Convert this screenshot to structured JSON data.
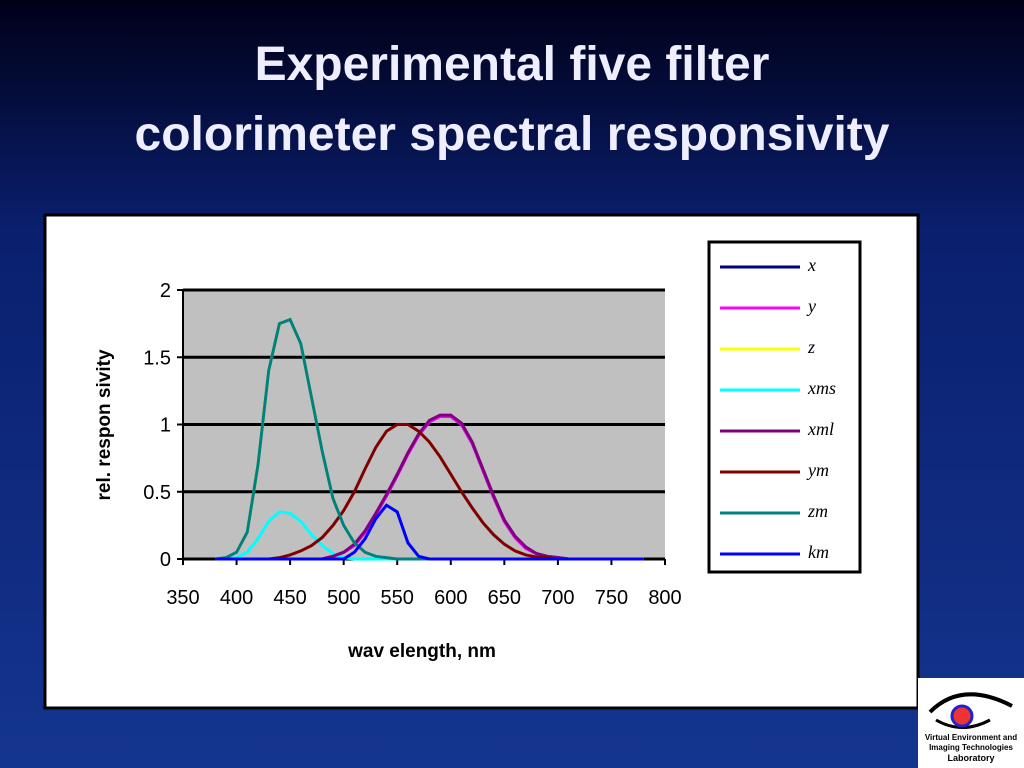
{
  "slide": {
    "title": [
      "Experimental five filter",
      "colorimeter spectral responsivity"
    ],
    "logo": [
      "Virtual Environment and",
      "Imaging Technologies",
      "Laboratory"
    ]
  },
  "chart_data": {
    "type": "line",
    "x_label": "wav elength, nm",
    "y_label": "rel. respon sivity",
    "x": [
      380,
      390,
      400,
      410,
      420,
      430,
      440,
      450,
      460,
      470,
      480,
      490,
      500,
      510,
      520,
      530,
      540,
      550,
      560,
      570,
      580,
      590,
      600,
      610,
      620,
      630,
      640,
      650,
      660,
      670,
      680,
      690,
      700,
      710,
      720,
      730,
      740,
      750,
      760,
      770,
      780
    ],
    "xlim": [
      350,
      800
    ],
    "xticks": [
      350,
      400,
      450,
      500,
      550,
      600,
      650,
      700,
      750,
      800
    ],
    "ylim": [
      0,
      2
    ],
    "yticks": [
      0,
      0.5,
      1,
      1.5,
      2
    ],
    "grid": true,
    "legend": "right",
    "series": [
      {
        "name": "x",
        "color": "#000080",
        "values": [
          0,
          0,
          0,
          0,
          0,
          0,
          0,
          0,
          0,
          0,
          0,
          0.02,
          0.05,
          0.1,
          0.2,
          0.33,
          0.47,
          0.62,
          0.78,
          0.92,
          1.02,
          1.06,
          1.06,
          1.0,
          0.86,
          0.66,
          0.46,
          0.28,
          0.16,
          0.08,
          0.04,
          0.02,
          0.01,
          0,
          0,
          0,
          0,
          0,
          0,
          0,
          0
        ]
      },
      {
        "name": "y",
        "color": "#ff00ff",
        "values": [
          0,
          0,
          0,
          0,
          0,
          0,
          0,
          0,
          0,
          0,
          0,
          0.02,
          0.05,
          0.1,
          0.2,
          0.33,
          0.47,
          0.62,
          0.78,
          0.92,
          1.02,
          1.06,
          1.06,
          1.0,
          0.86,
          0.66,
          0.46,
          0.28,
          0.16,
          0.08,
          0.04,
          0.02,
          0.01,
          0,
          0,
          0,
          0,
          0,
          0,
          0,
          0
        ]
      },
      {
        "name": "z",
        "color": "#ffff00",
        "values": [
          0,
          0.01,
          0.05,
          0.2,
          0.7,
          1.4,
          1.75,
          1.78,
          1.6,
          1.2,
          0.8,
          0.45,
          0.25,
          0.12,
          0.05,
          0.02,
          0.01,
          0,
          0,
          0,
          0,
          0,
          0,
          0,
          0,
          0,
          0,
          0,
          0,
          0,
          0,
          0,
          0,
          0,
          0,
          0,
          0,
          0,
          0,
          0,
          0
        ]
      },
      {
        "name": "xms",
        "color": "#00ffff",
        "values": [
          0,
          0,
          0.01,
          0.05,
          0.15,
          0.28,
          0.35,
          0.34,
          0.28,
          0.18,
          0.1,
          0.04,
          0.01,
          0,
          0,
          0,
          0,
          0,
          0,
          0,
          0,
          0,
          0,
          0,
          0,
          0,
          0,
          0,
          0,
          0,
          0,
          0,
          0,
          0,
          0,
          0,
          0,
          0,
          0,
          0,
          0
        ]
      },
      {
        "name": "xml",
        "color": "#800080",
        "values": [
          0,
          0,
          0,
          0,
          0,
          0,
          0,
          0,
          0,
          0,
          0,
          0.02,
          0.05,
          0.11,
          0.21,
          0.34,
          0.48,
          0.63,
          0.79,
          0.93,
          1.03,
          1.07,
          1.07,
          1.01,
          0.87,
          0.67,
          0.47,
          0.29,
          0.17,
          0.09,
          0.04,
          0.02,
          0.01,
          0,
          0,
          0,
          0,
          0,
          0,
          0,
          0
        ]
      },
      {
        "name": "ym",
        "color": "#800000",
        "values": [
          0,
          0,
          0,
          0,
          0,
          0,
          0.01,
          0.03,
          0.06,
          0.1,
          0.16,
          0.25,
          0.36,
          0.5,
          0.67,
          0.83,
          0.95,
          1.0,
          1.0,
          0.95,
          0.87,
          0.76,
          0.63,
          0.5,
          0.38,
          0.27,
          0.18,
          0.11,
          0.06,
          0.03,
          0.015,
          0.01,
          0,
          0,
          0,
          0,
          0,
          0,
          0,
          0,
          0
        ]
      },
      {
        "name": "zm",
        "color": "#008080",
        "values": [
          0,
          0.01,
          0.05,
          0.2,
          0.7,
          1.4,
          1.75,
          1.78,
          1.6,
          1.2,
          0.8,
          0.45,
          0.25,
          0.12,
          0.05,
          0.02,
          0.01,
          0,
          0,
          0,
          0,
          0,
          0,
          0,
          0,
          0,
          0,
          0,
          0,
          0,
          0,
          0,
          0,
          0,
          0,
          0,
          0,
          0,
          0,
          0,
          0
        ]
      },
      {
        "name": "km",
        "color": "#0000ff",
        "values": [
          0,
          0,
          0,
          0,
          0,
          0,
          0,
          0,
          0,
          0,
          0,
          0,
          0,
          0.05,
          0.15,
          0.3,
          0.4,
          0.35,
          0.12,
          0.02,
          0,
          0,
          0,
          0,
          0,
          0,
          0,
          0,
          0,
          0,
          0,
          0,
          0,
          0,
          0,
          0,
          0,
          0,
          0,
          0,
          0
        ]
      }
    ]
  }
}
